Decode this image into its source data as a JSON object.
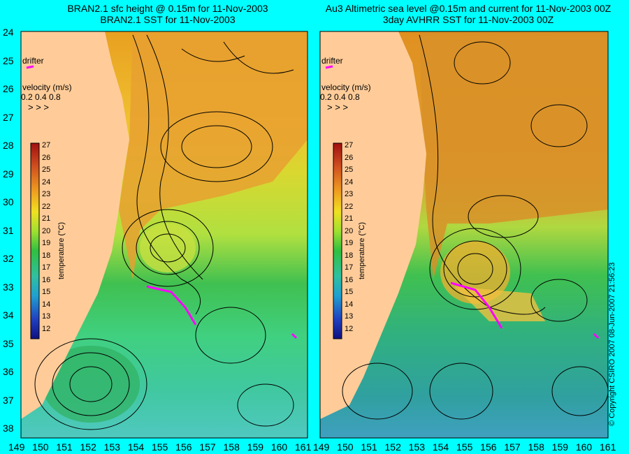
{
  "left_panel": {
    "title_line1": "BRAN2.1 sfc height @ 0.15m for 11-Nov-2003",
    "title_line2": "BRAN2.1 SST for 11-Nov-2003",
    "drifter_label": "drifter",
    "velocity_label": "velocity (m/s)",
    "velocity_scale": "0.2 0.4 0.8",
    "colorbar_title": "temperature (°C)"
  },
  "right_panel": {
    "title_line1": "Au3 Altimetric sea level  @0.15m and current for 11-Nov-2003 00Z",
    "title_line2": "3day AVHRR SST for 11-Nov-2003 00Z",
    "drifter_label": "drifter",
    "velocity_label": "velocity (m/s)",
    "velocity_scale": "0.2 0.4 0.8",
    "colorbar_title": "temperature (°C)"
  },
  "latitude_labels": [
    "24",
    "25",
    "26",
    "27",
    "28",
    "29",
    "30",
    "31",
    "32",
    "33",
    "34",
    "35",
    "36",
    "37",
    "38"
  ],
  "longitude_labels": [
    "149",
    "150",
    "151",
    "152",
    "153",
    "154",
    "155",
    "156",
    "157",
    "158",
    "159",
    "160",
    "161"
  ],
  "colorbar_ticks": [
    "27",
    "26",
    "25",
    "24",
    "23",
    "22",
    "21",
    "20",
    "19",
    "18",
    "17",
    "16",
    "15",
    "14",
    "13",
    "12"
  ],
  "copyright": "© Copyright CSIRO 2007  08-Jun-2007 21:56:23",
  "colors": {
    "background": "#00ffff",
    "land": "#ffcc99",
    "drifter": "#ff00ff"
  }
}
